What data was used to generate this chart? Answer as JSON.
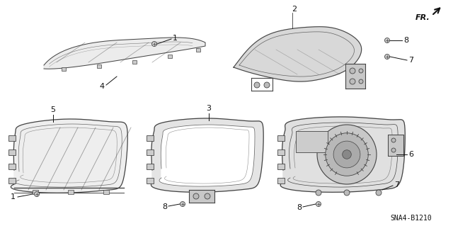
{
  "background_color": "#ffffff",
  "diagram_code": "SNA4-B1210",
  "fr_label": "FR.",
  "line_color": "#444444",
  "text_color": "#111111",
  "fill_light": "#e8e8e8",
  "fill_mid": "#d0d0d0",
  "fill_dark": "#b0b0b0"
}
